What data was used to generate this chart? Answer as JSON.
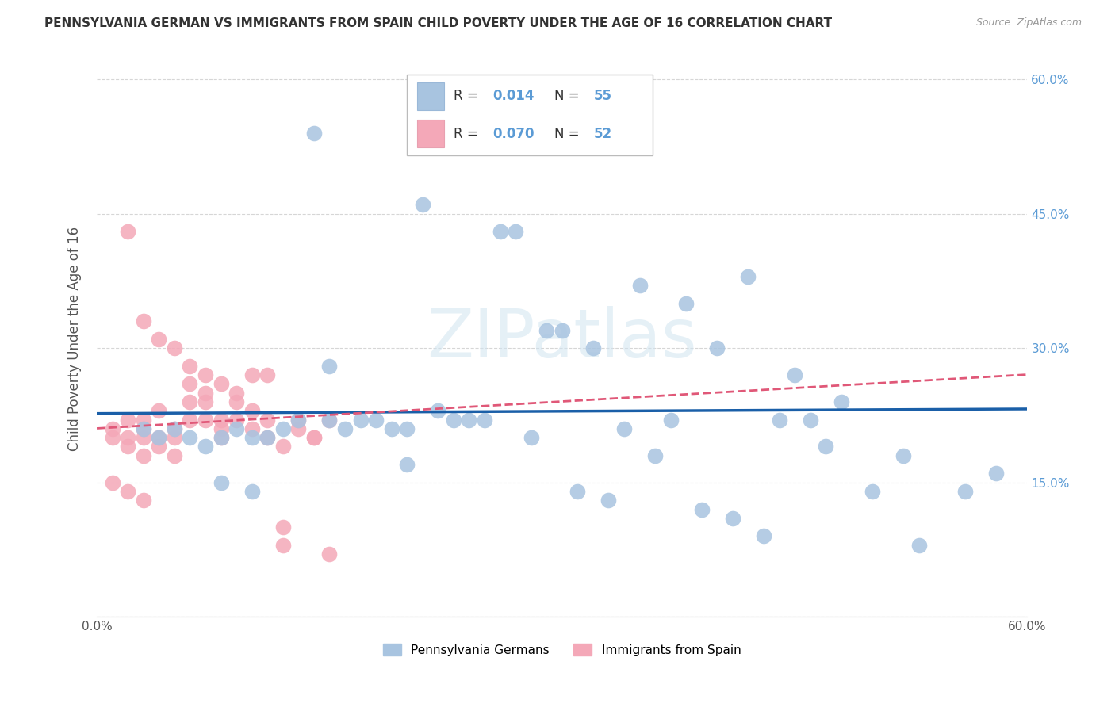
{
  "title": "PENNSYLVANIA GERMAN VS IMMIGRANTS FROM SPAIN CHILD POVERTY UNDER THE AGE OF 16 CORRELATION CHART",
  "source": "Source: ZipAtlas.com",
  "ylabel": "Child Poverty Under the Age of 16",
  "legend_labels": [
    "Pennsylvania Germans",
    "Immigrants from Spain"
  ],
  "r_blue": 0.014,
  "n_blue": 55,
  "r_pink": 0.07,
  "n_pink": 52,
  "blue_color": "#a8c4e0",
  "pink_color": "#f4a8b8",
  "trend_blue_color": "#1a5fa8",
  "trend_pink_color": "#e05878",
  "blue_scatter_x": [
    0.14,
    0.21,
    0.27,
    0.3,
    0.35,
    0.38,
    0.42,
    0.03,
    0.04,
    0.05,
    0.06,
    0.07,
    0.08,
    0.09,
    0.1,
    0.11,
    0.12,
    0.13,
    0.15,
    0.16,
    0.17,
    0.18,
    0.19,
    0.2,
    0.22,
    0.23,
    0.24,
    0.25,
    0.28,
    0.31,
    0.33,
    0.34,
    0.36,
    0.37,
    0.39,
    0.4,
    0.41,
    0.43,
    0.44,
    0.46,
    0.47,
    0.5,
    0.53,
    0.56,
    0.58,
    0.08,
    0.1,
    0.15,
    0.2,
    0.26,
    0.29,
    0.32,
    0.45,
    0.48,
    0.52
  ],
  "blue_scatter_y": [
    0.54,
    0.46,
    0.43,
    0.32,
    0.37,
    0.35,
    0.38,
    0.21,
    0.2,
    0.21,
    0.2,
    0.19,
    0.2,
    0.21,
    0.2,
    0.2,
    0.21,
    0.22,
    0.22,
    0.21,
    0.22,
    0.22,
    0.21,
    0.21,
    0.23,
    0.22,
    0.22,
    0.22,
    0.2,
    0.14,
    0.13,
    0.21,
    0.18,
    0.22,
    0.12,
    0.3,
    0.11,
    0.09,
    0.22,
    0.22,
    0.19,
    0.14,
    0.08,
    0.14,
    0.16,
    0.15,
    0.14,
    0.28,
    0.17,
    0.43,
    0.32,
    0.3,
    0.27,
    0.24,
    0.18
  ],
  "pink_scatter_x": [
    0.01,
    0.01,
    0.02,
    0.02,
    0.02,
    0.03,
    0.03,
    0.03,
    0.03,
    0.04,
    0.04,
    0.04,
    0.05,
    0.05,
    0.05,
    0.06,
    0.06,
    0.06,
    0.07,
    0.07,
    0.07,
    0.08,
    0.08,
    0.08,
    0.09,
    0.09,
    0.1,
    0.1,
    0.11,
    0.11,
    0.12,
    0.12,
    0.13,
    0.13,
    0.14,
    0.15,
    0.02,
    0.03,
    0.04,
    0.05,
    0.06,
    0.07,
    0.08,
    0.09,
    0.1,
    0.11,
    0.12,
    0.14,
    0.15,
    0.01,
    0.02,
    0.03
  ],
  "pink_scatter_y": [
    0.21,
    0.2,
    0.22,
    0.2,
    0.19,
    0.22,
    0.21,
    0.2,
    0.18,
    0.23,
    0.2,
    0.19,
    0.21,
    0.2,
    0.18,
    0.22,
    0.24,
    0.26,
    0.25,
    0.24,
    0.22,
    0.21,
    0.2,
    0.22,
    0.24,
    0.22,
    0.23,
    0.21,
    0.2,
    0.22,
    0.1,
    0.19,
    0.21,
    0.22,
    0.2,
    0.22,
    0.43,
    0.33,
    0.31,
    0.3,
    0.28,
    0.27,
    0.26,
    0.25,
    0.27,
    0.27,
    0.08,
    0.2,
    0.07,
    0.15,
    0.14,
    0.13
  ],
  "xlim": [
    0.0,
    0.6
  ],
  "ylim": [
    0.0,
    0.62
  ],
  "background_color": "#ffffff",
  "grid_color": "#cccccc"
}
